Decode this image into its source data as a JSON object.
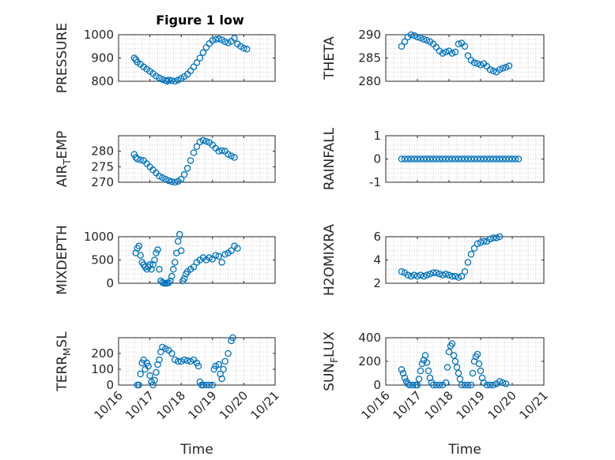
{
  "figure_title": "Figure 1 low",
  "colors": {
    "marker": "#0072BD",
    "grid": "#c8c8c8",
    "axis": "#262626"
  },
  "chart_data": [
    {
      "type": "scatter",
      "ylabel": "PRESSURE",
      "ylim": [
        800,
        1000
      ],
      "yticks": [
        800,
        900,
        1000
      ],
      "xlim": [
        "10/16",
        "10/21"
      ],
      "xticklabels": [],
      "grid": true,
      "points": [
        [
          0.5,
          900
        ],
        [
          0.55,
          893
        ],
        [
          0.6,
          882
        ],
        [
          0.7,
          873
        ],
        [
          0.8,
          862
        ],
        [
          0.9,
          852
        ],
        [
          1.0,
          843
        ],
        [
          1.1,
          833
        ],
        [
          1.2,
          822
        ],
        [
          1.3,
          815
        ],
        [
          1.4,
          808
        ],
        [
          1.5,
          803
        ],
        [
          1.55,
          800
        ],
        [
          1.6,
          805
        ],
        [
          1.7,
          803
        ],
        [
          1.8,
          800
        ],
        [
          1.9,
          805
        ],
        [
          2.0,
          812
        ],
        [
          2.1,
          820
        ],
        [
          2.2,
          830
        ],
        [
          2.3,
          845
        ],
        [
          2.4,
          862
        ],
        [
          2.5,
          880
        ],
        [
          2.6,
          900
        ],
        [
          2.7,
          923
        ],
        [
          2.8,
          945
        ],
        [
          2.9,
          962
        ],
        [
          3.0,
          975
        ],
        [
          3.1,
          980
        ],
        [
          3.2,
          982
        ],
        [
          3.3,
          978
        ],
        [
          3.4,
          970
        ],
        [
          3.5,
          965
        ],
        [
          3.6,
          972
        ],
        [
          3.7,
          985
        ],
        [
          3.8,
          960
        ],
        [
          3.9,
          950
        ],
        [
          4.0,
          942
        ],
        [
          4.1,
          938
        ]
      ]
    },
    {
      "type": "scatter",
      "ylabel": "THETA",
      "ylim": [
        280,
        290
      ],
      "yticks": [
        280,
        285,
        290
      ],
      "xlim": [
        "10/16",
        "10/21"
      ],
      "xticklabels": [],
      "grid": true,
      "points": [
        [
          0.5,
          287.5
        ],
        [
          0.6,
          288.5
        ],
        [
          0.7,
          289.5
        ],
        [
          0.8,
          290
        ],
        [
          0.9,
          289.8
        ],
        [
          1.0,
          289.5
        ],
        [
          1.1,
          289.3
        ],
        [
          1.2,
          289
        ],
        [
          1.3,
          288.8
        ],
        [
          1.4,
          288.5
        ],
        [
          1.5,
          288
        ],
        [
          1.6,
          287.3
        ],
        [
          1.7,
          286.5
        ],
        [
          1.8,
          286
        ],
        [
          1.9,
          286.3
        ],
        [
          2.0,
          286.5
        ],
        [
          2.1,
          286
        ],
        [
          2.2,
          286.3
        ],
        [
          2.3,
          288
        ],
        [
          2.4,
          288.2
        ],
        [
          2.5,
          287.5
        ],
        [
          2.6,
          285.5
        ],
        [
          2.7,
          284.5
        ],
        [
          2.8,
          284
        ],
        [
          2.9,
          283.8
        ],
        [
          3.0,
          283.5
        ],
        [
          3.1,
          283.8
        ],
        [
          3.2,
          283.2
        ],
        [
          3.3,
          282.5
        ],
        [
          3.4,
          282.2
        ],
        [
          3.5,
          282
        ],
        [
          3.6,
          282.5
        ],
        [
          3.7,
          282.8
        ],
        [
          3.8,
          283
        ],
        [
          3.9,
          283.3
        ]
      ]
    },
    {
      "type": "scatter",
      "ylabel": "AIR_TEMP",
      "ylabel_parts": [
        "AIR",
        "T",
        "EMP"
      ],
      "ylim": [
        270,
        285
      ],
      "yticks": [
        270,
        275,
        280
      ],
      "xlim": [
        "10/16",
        "10/21"
      ],
      "xticklabels": [],
      "grid": true,
      "points": [
        [
          0.5,
          279
        ],
        [
          0.55,
          278
        ],
        [
          0.6,
          277.5
        ],
        [
          0.7,
          277.2
        ],
        [
          0.8,
          277
        ],
        [
          0.9,
          276
        ],
        [
          1.0,
          275
        ],
        [
          1.1,
          274
        ],
        [
          1.2,
          273
        ],
        [
          1.3,
          272
        ],
        [
          1.4,
          271.5
        ],
        [
          1.5,
          271
        ],
        [
          1.6,
          270.5
        ],
        [
          1.7,
          270.2
        ],
        [
          1.8,
          270
        ],
        [
          1.9,
          270.3
        ],
        [
          2.0,
          271
        ],
        [
          2.1,
          272.5
        ],
        [
          2.2,
          274.5
        ],
        [
          2.3,
          277
        ],
        [
          2.4,
          279.5
        ],
        [
          2.5,
          281.5
        ],
        [
          2.6,
          283
        ],
        [
          2.7,
          283.5
        ],
        [
          2.8,
          283.2
        ],
        [
          2.9,
          282.8
        ],
        [
          3.0,
          282
        ],
        [
          3.1,
          281
        ],
        [
          3.2,
          280
        ],
        [
          3.3,
          280.2
        ],
        [
          3.4,
          280
        ],
        [
          3.5,
          279
        ],
        [
          3.6,
          278.5
        ],
        [
          3.7,
          278
        ]
      ]
    },
    {
      "type": "scatter",
      "ylabel": "RAINFALL",
      "ylim": [
        -1,
        1
      ],
      "yticks": [
        -1,
        0,
        1
      ],
      "xlim": [
        "10/16",
        "10/21"
      ],
      "xticklabels": [],
      "grid": true,
      "points": [
        [
          0.5,
          0
        ],
        [
          0.6,
          0
        ],
        [
          0.7,
          0
        ],
        [
          0.8,
          0
        ],
        [
          0.9,
          0
        ],
        [
          1.0,
          0
        ],
        [
          1.1,
          0
        ],
        [
          1.2,
          0
        ],
        [
          1.3,
          0
        ],
        [
          1.4,
          0
        ],
        [
          1.5,
          0
        ],
        [
          1.6,
          0
        ],
        [
          1.7,
          0
        ],
        [
          1.8,
          0
        ],
        [
          1.9,
          0
        ],
        [
          2.0,
          0
        ],
        [
          2.1,
          0
        ],
        [
          2.2,
          0
        ],
        [
          2.3,
          0
        ],
        [
          2.4,
          0
        ],
        [
          2.5,
          0
        ],
        [
          2.6,
          0
        ],
        [
          2.7,
          0
        ],
        [
          2.8,
          0
        ],
        [
          2.9,
          0
        ],
        [
          3.0,
          0
        ],
        [
          3.1,
          0
        ],
        [
          3.2,
          0
        ],
        [
          3.3,
          0
        ],
        [
          3.4,
          0
        ],
        [
          3.5,
          0
        ],
        [
          3.6,
          0
        ],
        [
          3.7,
          0
        ],
        [
          3.8,
          0
        ],
        [
          3.9,
          0
        ],
        [
          4.0,
          0
        ],
        [
          4.1,
          0
        ],
        [
          4.2,
          0
        ]
      ]
    },
    {
      "type": "scatter",
      "ylabel": "MIXDEPTH",
      "ylim": [
        0,
        1000
      ],
      "yticks": [
        0,
        500,
        1000
      ],
      "xlim": [
        "10/16",
        "10/21"
      ],
      "xticklabels": [],
      "grid": true,
      "points": [
        [
          0.55,
          650
        ],
        [
          0.6,
          750
        ],
        [
          0.65,
          800
        ],
        [
          0.7,
          600
        ],
        [
          0.75,
          450
        ],
        [
          0.8,
          400
        ],
        [
          0.85,
          350
        ],
        [
          0.9,
          300
        ],
        [
          0.95,
          350
        ],
        [
          1.0,
          400
        ],
        [
          1.05,
          300
        ],
        [
          1.1,
          400
        ],
        [
          1.15,
          500
        ],
        [
          1.2,
          650
        ],
        [
          1.25,
          720
        ],
        [
          1.3,
          300
        ],
        [
          1.35,
          50
        ],
        [
          1.4,
          20
        ],
        [
          1.45,
          0
        ],
        [
          1.5,
          0
        ],
        [
          1.55,
          0
        ],
        [
          1.6,
          10
        ],
        [
          1.65,
          50
        ],
        [
          1.7,
          150
        ],
        [
          1.75,
          300
        ],
        [
          1.8,
          450
        ],
        [
          1.85,
          650
        ],
        [
          1.9,
          900
        ],
        [
          1.95,
          1050
        ],
        [
          2.0,
          700
        ],
        [
          2.05,
          50
        ],
        [
          2.1,
          100
        ],
        [
          2.15,
          200
        ],
        [
          2.2,
          250
        ],
        [
          2.3,
          300
        ],
        [
          2.4,
          350
        ],
        [
          2.5,
          450
        ],
        [
          2.6,
          500
        ],
        [
          2.7,
          550
        ],
        [
          2.8,
          500
        ],
        [
          2.9,
          550
        ],
        [
          3.0,
          520
        ],
        [
          3.1,
          600
        ],
        [
          3.2,
          580
        ],
        [
          3.3,
          450
        ],
        [
          3.4,
          620
        ],
        [
          3.5,
          650
        ],
        [
          3.6,
          700
        ],
        [
          3.7,
          800
        ],
        [
          3.8,
          750
        ]
      ]
    },
    {
      "type": "scatter",
      "ylabel": "H2OMIXRA",
      "ylim": [
        2,
        6
      ],
      "yticks": [
        2,
        4,
        6
      ],
      "xlim": [
        "10/16",
        "10/21"
      ],
      "xticklabels": [],
      "grid": true,
      "points": [
        [
          0.5,
          3.0
        ],
        [
          0.6,
          2.9
        ],
        [
          0.7,
          2.7
        ],
        [
          0.8,
          2.6
        ],
        [
          0.9,
          2.7
        ],
        [
          1.0,
          2.6
        ],
        [
          1.1,
          2.7
        ],
        [
          1.2,
          2.6
        ],
        [
          1.3,
          2.7
        ],
        [
          1.4,
          2.8
        ],
        [
          1.5,
          2.9
        ],
        [
          1.6,
          2.9
        ],
        [
          1.7,
          2.8
        ],
        [
          1.8,
          2.7
        ],
        [
          1.9,
          2.8
        ],
        [
          2.0,
          2.7
        ],
        [
          2.1,
          2.6
        ],
        [
          2.2,
          2.6
        ],
        [
          2.3,
          2.5
        ],
        [
          2.4,
          2.6
        ],
        [
          2.5,
          3.0
        ],
        [
          2.6,
          3.8
        ],
        [
          2.7,
          4.5
        ],
        [
          2.8,
          5.0
        ],
        [
          2.9,
          5.4
        ],
        [
          3.0,
          5.5
        ],
        [
          3.1,
          5.6
        ],
        [
          3.2,
          5.6
        ],
        [
          3.3,
          5.8
        ],
        [
          3.4,
          5.9
        ],
        [
          3.5,
          5.9
        ],
        [
          3.6,
          6.0
        ]
      ]
    },
    {
      "type": "scatter",
      "ylabel": "TERR_MSL",
      "ylabel_parts": [
        "TERR",
        "M",
        "SL"
      ],
      "ylim": [
        0,
        300
      ],
      "yticks": [
        0,
        100,
        200
      ],
      "xlim": [
        "10/16",
        "10/21"
      ],
      "xticks": [
        "10/16",
        "10/17",
        "10/18",
        "10/19",
        "10/20",
        "10/21"
      ],
      "xticklabels": [
        "10/16",
        "10/17",
        "10/18",
        "10/19",
        "10/20",
        "10/21"
      ],
      "xlabel": "Time",
      "grid": true,
      "points": [
        [
          0.6,
          0
        ],
        [
          0.65,
          0
        ],
        [
          0.7,
          70
        ],
        [
          0.75,
          140
        ],
        [
          0.8,
          160
        ],
        [
          0.85,
          100
        ],
        [
          0.9,
          140
        ],
        [
          0.95,
          120
        ],
        [
          1.0,
          60
        ],
        [
          1.05,
          20
        ],
        [
          1.1,
          0
        ],
        [
          1.15,
          30
        ],
        [
          1.2,
          80
        ],
        [
          1.25,
          130
        ],
        [
          1.3,
          160
        ],
        [
          1.35,
          210
        ],
        [
          1.4,
          240
        ],
        [
          1.5,
          230
        ],
        [
          1.6,
          220
        ],
        [
          1.7,
          200
        ],
        [
          1.8,
          160
        ],
        [
          1.9,
          150
        ],
        [
          2.0,
          150
        ],
        [
          2.1,
          160
        ],
        [
          2.2,
          155
        ],
        [
          2.3,
          150
        ],
        [
          2.4,
          160
        ],
        [
          2.5,
          140
        ],
        [
          2.55,
          120
        ],
        [
          2.6,
          20
        ],
        [
          2.65,
          0
        ],
        [
          2.7,
          0
        ],
        [
          2.8,
          0
        ],
        [
          2.9,
          0
        ],
        [
          3.0,
          0
        ],
        [
          3.05,
          100
        ],
        [
          3.1,
          120
        ],
        [
          3.2,
          130
        ],
        [
          3.25,
          70
        ],
        [
          3.3,
          40
        ],
        [
          3.35,
          100
        ],
        [
          3.4,
          150
        ],
        [
          3.5,
          200
        ],
        [
          3.6,
          280
        ],
        [
          3.65,
          300
        ]
      ]
    },
    {
      "type": "scatter",
      "ylabel": "SUN_FLUX",
      "ylabel_parts": [
        "SUN",
        "F",
        "LUX"
      ],
      "ylim": [
        0,
        400
      ],
      "yticks": [
        0,
        200,
        400
      ],
      "xlim": [
        "10/16",
        "10/21"
      ],
      "xticks": [
        "10/16",
        "10/17",
        "10/18",
        "10/19",
        "10/20",
        "10/21"
      ],
      "xticklabels": [
        "10/16",
        "10/17",
        "10/18",
        "10/19",
        "10/20",
        "10/21"
      ],
      "xlabel": "Time",
      "grid": true,
      "points": [
        [
          0.5,
          130
        ],
        [
          0.55,
          100
        ],
        [
          0.6,
          60
        ],
        [
          0.65,
          30
        ],
        [
          0.7,
          10
        ],
        [
          0.75,
          0
        ],
        [
          0.85,
          0
        ],
        [
          0.95,
          0
        ],
        [
          1.0,
          0
        ],
        [
          1.05,
          50
        ],
        [
          1.1,
          120
        ],
        [
          1.15,
          180
        ],
        [
          1.2,
          210
        ],
        [
          1.25,
          250
        ],
        [
          1.3,
          190
        ],
        [
          1.35,
          120
        ],
        [
          1.4,
          60
        ],
        [
          1.45,
          20
        ],
        [
          1.5,
          0
        ],
        [
          1.6,
          0
        ],
        [
          1.7,
          0
        ],
        [
          1.8,
          0
        ],
        [
          1.9,
          20
        ],
        [
          1.95,
          150
        ],
        [
          2.0,
          280
        ],
        [
          2.05,
          330
        ],
        [
          2.1,
          350
        ],
        [
          2.15,
          250
        ],
        [
          2.2,
          200
        ],
        [
          2.25,
          150
        ],
        [
          2.3,
          100
        ],
        [
          2.35,
          50
        ],
        [
          2.4,
          0
        ],
        [
          2.5,
          0
        ],
        [
          2.6,
          0
        ],
        [
          2.7,
          0
        ],
        [
          2.75,
          100
        ],
        [
          2.8,
          200
        ],
        [
          2.85,
          240
        ],
        [
          2.9,
          260
        ],
        [
          2.95,
          180
        ],
        [
          3.0,
          120
        ],
        [
          3.05,
          60
        ],
        [
          3.1,
          20
        ],
        [
          3.2,
          0
        ],
        [
          3.3,
          0
        ],
        [
          3.4,
          0
        ],
        [
          3.5,
          10
        ],
        [
          3.6,
          30
        ],
        [
          3.7,
          20
        ],
        [
          3.8,
          10
        ]
      ]
    }
  ]
}
